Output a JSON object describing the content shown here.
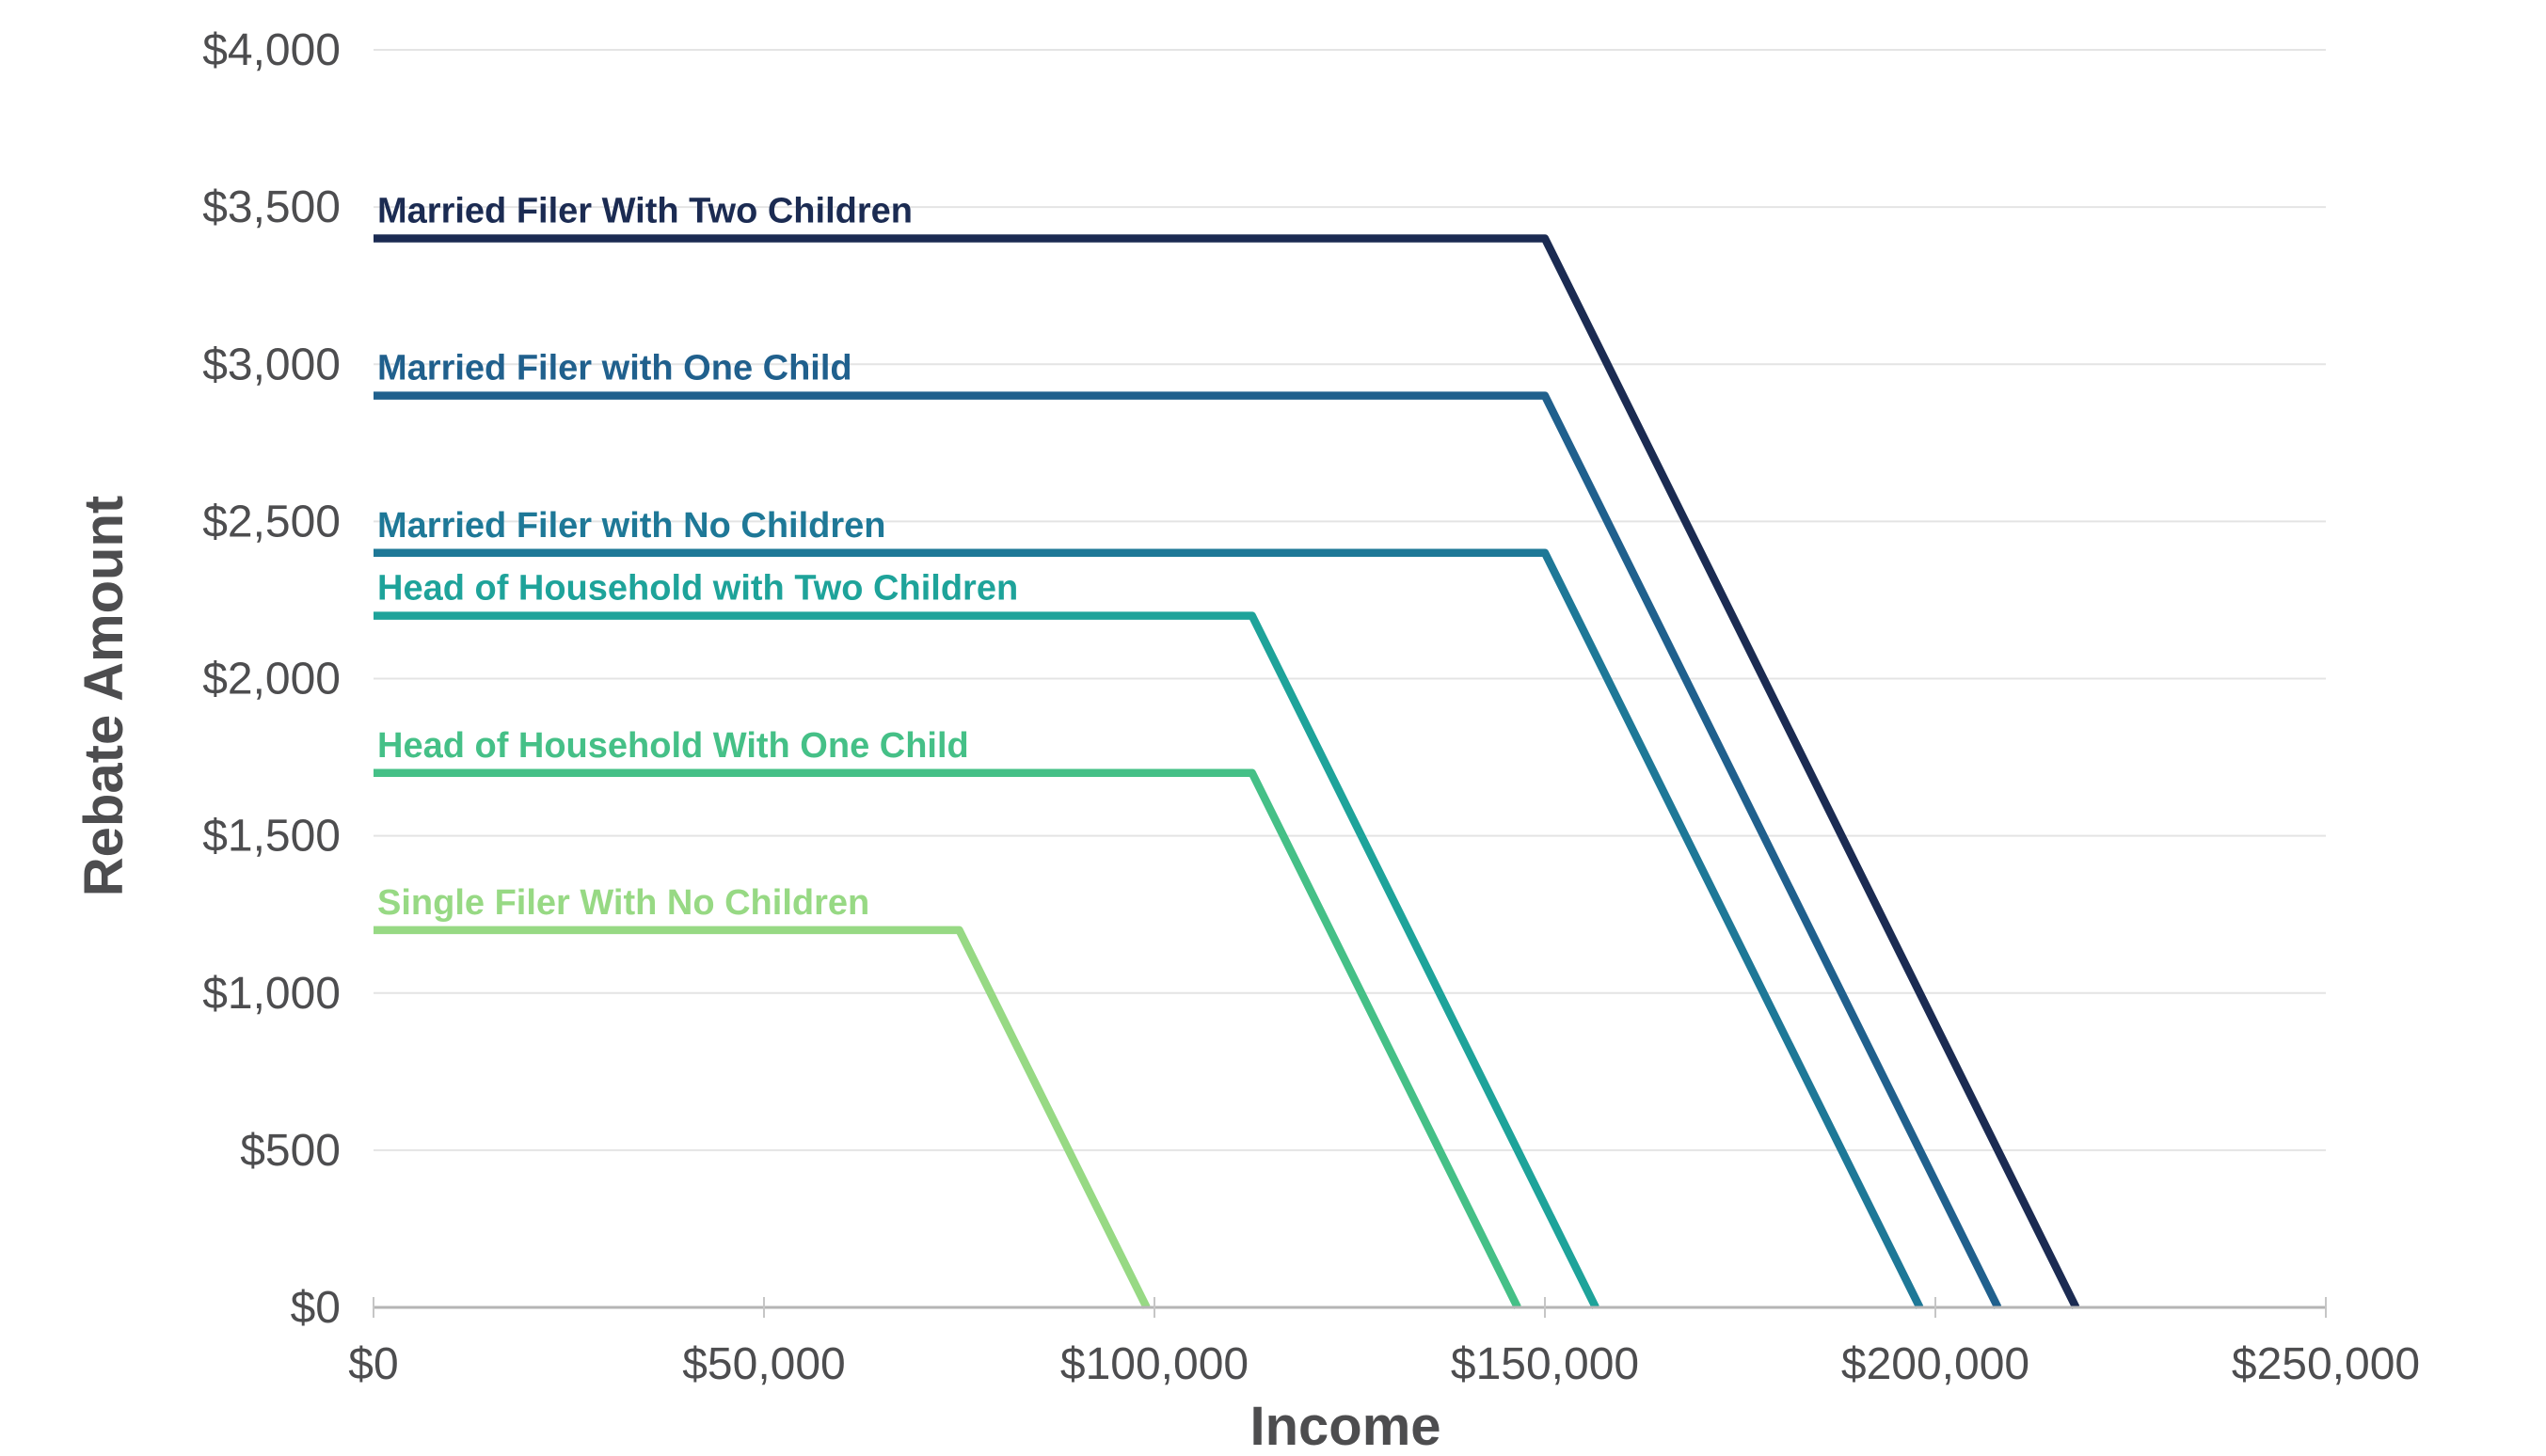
{
  "chart_data": {
    "type": "line",
    "title": "",
    "xlabel": "Income",
    "ylabel": "Rebate Amount",
    "xlim": [
      0,
      250000
    ],
    "ylim": [
      0,
      4000
    ],
    "grid": "horizontal",
    "legend": "inline-series-labels",
    "x_ticks": [
      0,
      50000,
      100000,
      150000,
      200000,
      250000
    ],
    "x_tick_labels": [
      "$0",
      "$50,000",
      "$100,000",
      "$150,000",
      "$200,000",
      "$250,000"
    ],
    "y_ticks": [
      0,
      500,
      1000,
      1500,
      2000,
      2500,
      3000,
      3500,
      4000
    ],
    "y_tick_labels": [
      "$0",
      "$500",
      "$1,000",
      "$1,500",
      "$2,000",
      "$2,500",
      "$3,000",
      "$3,500",
      "$4,000"
    ],
    "series": [
      {
        "name": "Married Filer With Two Children",
        "color": "#1B2B52",
        "points": [
          [
            0,
            3400
          ],
          [
            150000,
            3400
          ],
          [
            218000,
            0
          ]
        ]
      },
      {
        "name": "Married Filer with One Child",
        "color": "#20608D",
        "points": [
          [
            0,
            2900
          ],
          [
            150000,
            2900
          ],
          [
            208000,
            0
          ]
        ]
      },
      {
        "name": "Married Filer with No Children",
        "color": "#1E7897",
        "points": [
          [
            0,
            2400
          ],
          [
            150000,
            2400
          ],
          [
            198000,
            0
          ]
        ]
      },
      {
        "name": "Head of Household with Two Children",
        "color": "#1EA39A",
        "points": [
          [
            0,
            2200
          ],
          [
            112500,
            2200
          ],
          [
            156500,
            0
          ]
        ]
      },
      {
        "name": "Head of Household With One Child",
        "color": "#45C087",
        "points": [
          [
            0,
            1700
          ],
          [
            112500,
            1700
          ],
          [
            146500,
            0
          ]
        ]
      },
      {
        "name": "Single Filer With No Children",
        "color": "#97D984",
        "points": [
          [
            0,
            1200
          ],
          [
            75000,
            1200
          ],
          [
            99000,
            0
          ]
        ]
      }
    ],
    "style_colors": {
      "gridline": "#E4E4E4",
      "axis_line": "#B5B5B5",
      "tick_mark": "#C6C6C6",
      "tick_label": "#4D4D4F",
      "axis_title": "#4D4D4F",
      "background": "#FFFFFF"
    }
  }
}
